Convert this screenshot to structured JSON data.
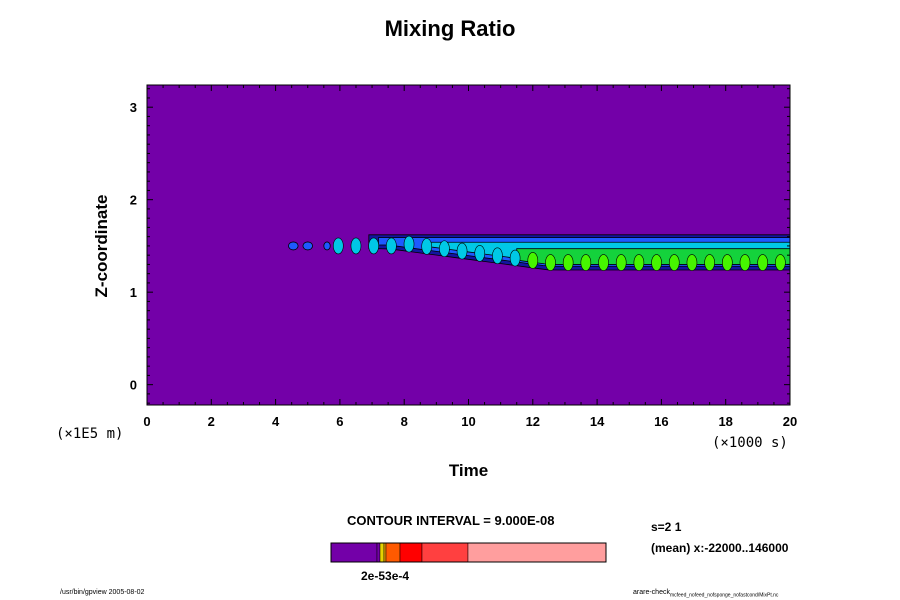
{
  "title": "Mixing Ratio",
  "x_axis_title": "Time",
  "y_axis_title": "Z-coordinate",
  "y_unit_label": "(×1E5 m)",
  "x_unit_label": "(×1000 s)",
  "contour_interval_label": "CONTOUR INTERVAL = 9.000E-08",
  "info_line1": "s=2 1",
  "info_line2": "(mean) x:-22000..146000",
  "colorbar_label": "2e-53e-4",
  "footer_left": "/usr/bin/gpview 2005-08-02",
  "footer_right_main": "arare-check",
  "footer_right_sub": "mcfeed_nofeed_nofsponge_nofastcond/MixPt.nc",
  "colors": {
    "background_level": "#7300a8",
    "contour_levels": [
      "#1414a0",
      "#1e5aff",
      "#00c8e6",
      "#14d23c",
      "#46f500"
    ],
    "colorbar_segments": [
      "#7300a8",
      "#7300a8",
      "#e6d200",
      "#f0a000",
      "#ff5a00",
      "#ff0000",
      "#ff4040",
      "#ff9e9e"
    ]
  },
  "chart_data": {
    "type": "heatmap",
    "title": "Mixing Ratio",
    "xlabel": "Time",
    "ylabel": "Z-coordinate",
    "x_unit": "×1000 s",
    "y_unit": "×1E5 m",
    "xlim": [
      0,
      20
    ],
    "ylim": [
      -0.22,
      3.24
    ],
    "x_ticks": [
      0,
      2,
      4,
      6,
      8,
      10,
      12,
      14,
      16,
      18,
      20
    ],
    "y_ticks": [
      0,
      1,
      2,
      3
    ],
    "contour_interval": "9.000E-08",
    "plume": {
      "onset_x": 4.5,
      "x_end": 20,
      "center_y": 1.5,
      "top_y": 1.62,
      "bottom_y_start": 1.45,
      "bottom_y_end": 1.22
    }
  }
}
